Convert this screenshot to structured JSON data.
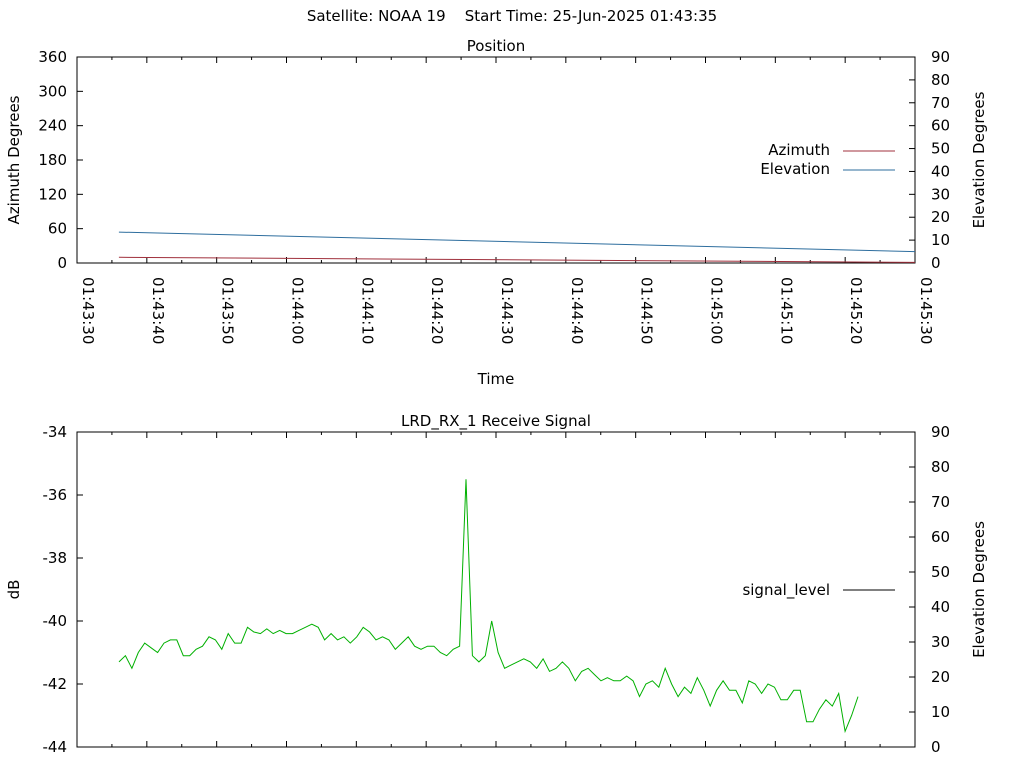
{
  "header": {
    "title": "Satellite: NOAA 19    Start Time: 25-Jun-2025 01:43:35"
  },
  "chart_data": [
    {
      "type": "line",
      "title": "Position",
      "xlabel": "Time",
      "ylabel": "Azimuth Degrees",
      "y2label": "Elevation Degrees",
      "xlim": [
        "01:43:30",
        "01:45:30"
      ],
      "ylim": [
        0,
        360
      ],
      "y2lim": [
        0,
        90
      ],
      "x_tick_labels": [
        "01:43:30",
        "01:43:40",
        "01:43:50",
        "01:44:00",
        "01:44:10",
        "01:44:20",
        "01:44:30",
        "01:44:40",
        "01:44:50",
        "01:45:00",
        "01:45:10",
        "01:45:20",
        "01:45:30"
      ],
      "y_tick_labels": [
        "0",
        "60",
        "120",
        "180",
        "240",
        "300",
        "360"
      ],
      "y2_tick_labels": [
        "0",
        "10",
        "20",
        "30",
        "40",
        "50",
        "60",
        "70",
        "80",
        "90"
      ],
      "legend_position": "right",
      "series": [
        {
          "name": "Azimuth",
          "color": "#a0303c",
          "axis": "y",
          "points": [
            [
              "01:43:36",
              10
            ],
            [
              "01:45:30",
              1
            ]
          ]
        },
        {
          "name": "Elevation",
          "color": "#2e6e9e",
          "axis": "y2",
          "points": [
            [
              "01:43:36",
              13.5
            ],
            [
              "01:45:30",
              5
            ]
          ]
        }
      ]
    },
    {
      "type": "line",
      "title": "LRD_RX_1 Receive Signal",
      "xlabel": "",
      "ylabel": "dB",
      "y2label": "Elevation Degrees",
      "ylim": [
        -44,
        -34
      ],
      "y2lim": [
        0,
        90
      ],
      "y_tick_labels": [
        "-44",
        "-42",
        "-40",
        "-38",
        "-36",
        "-34"
      ],
      "y2_tick_labels": [
        "0",
        "10",
        "20",
        "30",
        "40",
        "50",
        "60",
        "70",
        "80",
        "90"
      ],
      "legend_position": "right",
      "series": [
        {
          "name": "signal_level",
          "color": "#00b000",
          "legend_color": "#000000",
          "x_start": 94,
          "x_step": 1,
          "values": [
            -41.3,
            -41.1,
            -41.5,
            -41.0,
            -40.7,
            -40.85,
            -41.0,
            -40.7,
            -40.6,
            -40.6,
            -41.1,
            -41.1,
            -40.9,
            -40.8,
            -40.5,
            -40.6,
            -40.9,
            -40.4,
            -40.7,
            -40.7,
            -40.2,
            -40.35,
            -40.4,
            -40.25,
            -40.4,
            -40.3,
            -40.4,
            -40.4,
            -40.3,
            -40.2,
            -40.1,
            -40.2,
            -40.6,
            -40.4,
            -40.6,
            -40.5,
            -40.7,
            -40.5,
            -40.2,
            -40.35,
            -40.6,
            -40.5,
            -40.6,
            -40.9,
            -40.7,
            -40.5,
            -40.8,
            -40.9,
            -40.8,
            -40.8,
            -41.0,
            -41.1,
            -40.9,
            -40.8,
            -35.5,
            -41.1,
            -41.3,
            -41.1,
            -40.0,
            -41.0,
            -41.5,
            -41.4,
            -41.3,
            -41.2,
            -41.3,
            -41.5,
            -41.2,
            -41.6,
            -41.5,
            -41.3,
            -41.5,
            -41.9,
            -41.6,
            -41.5,
            -41.7,
            -41.9,
            -41.8,
            -41.9,
            -41.9,
            -41.75,
            -41.9,
            -42.4,
            -42.0,
            -41.9,
            -42.1,
            -41.5,
            -42.0,
            -42.4,
            -42.1,
            -42.3,
            -41.8,
            -42.2,
            -42.7,
            -42.2,
            -41.9,
            -42.2,
            -42.2,
            -42.6,
            -41.9,
            -42.0,
            -42.3,
            -42.0,
            -42.1,
            -42.5,
            -42.5,
            -42.2,
            -42.2,
            -43.2,
            -43.2,
            -42.8,
            -42.5,
            -42.7,
            -42.3,
            -43.5,
            -43.0,
            -42.4
          ]
        }
      ]
    }
  ]
}
